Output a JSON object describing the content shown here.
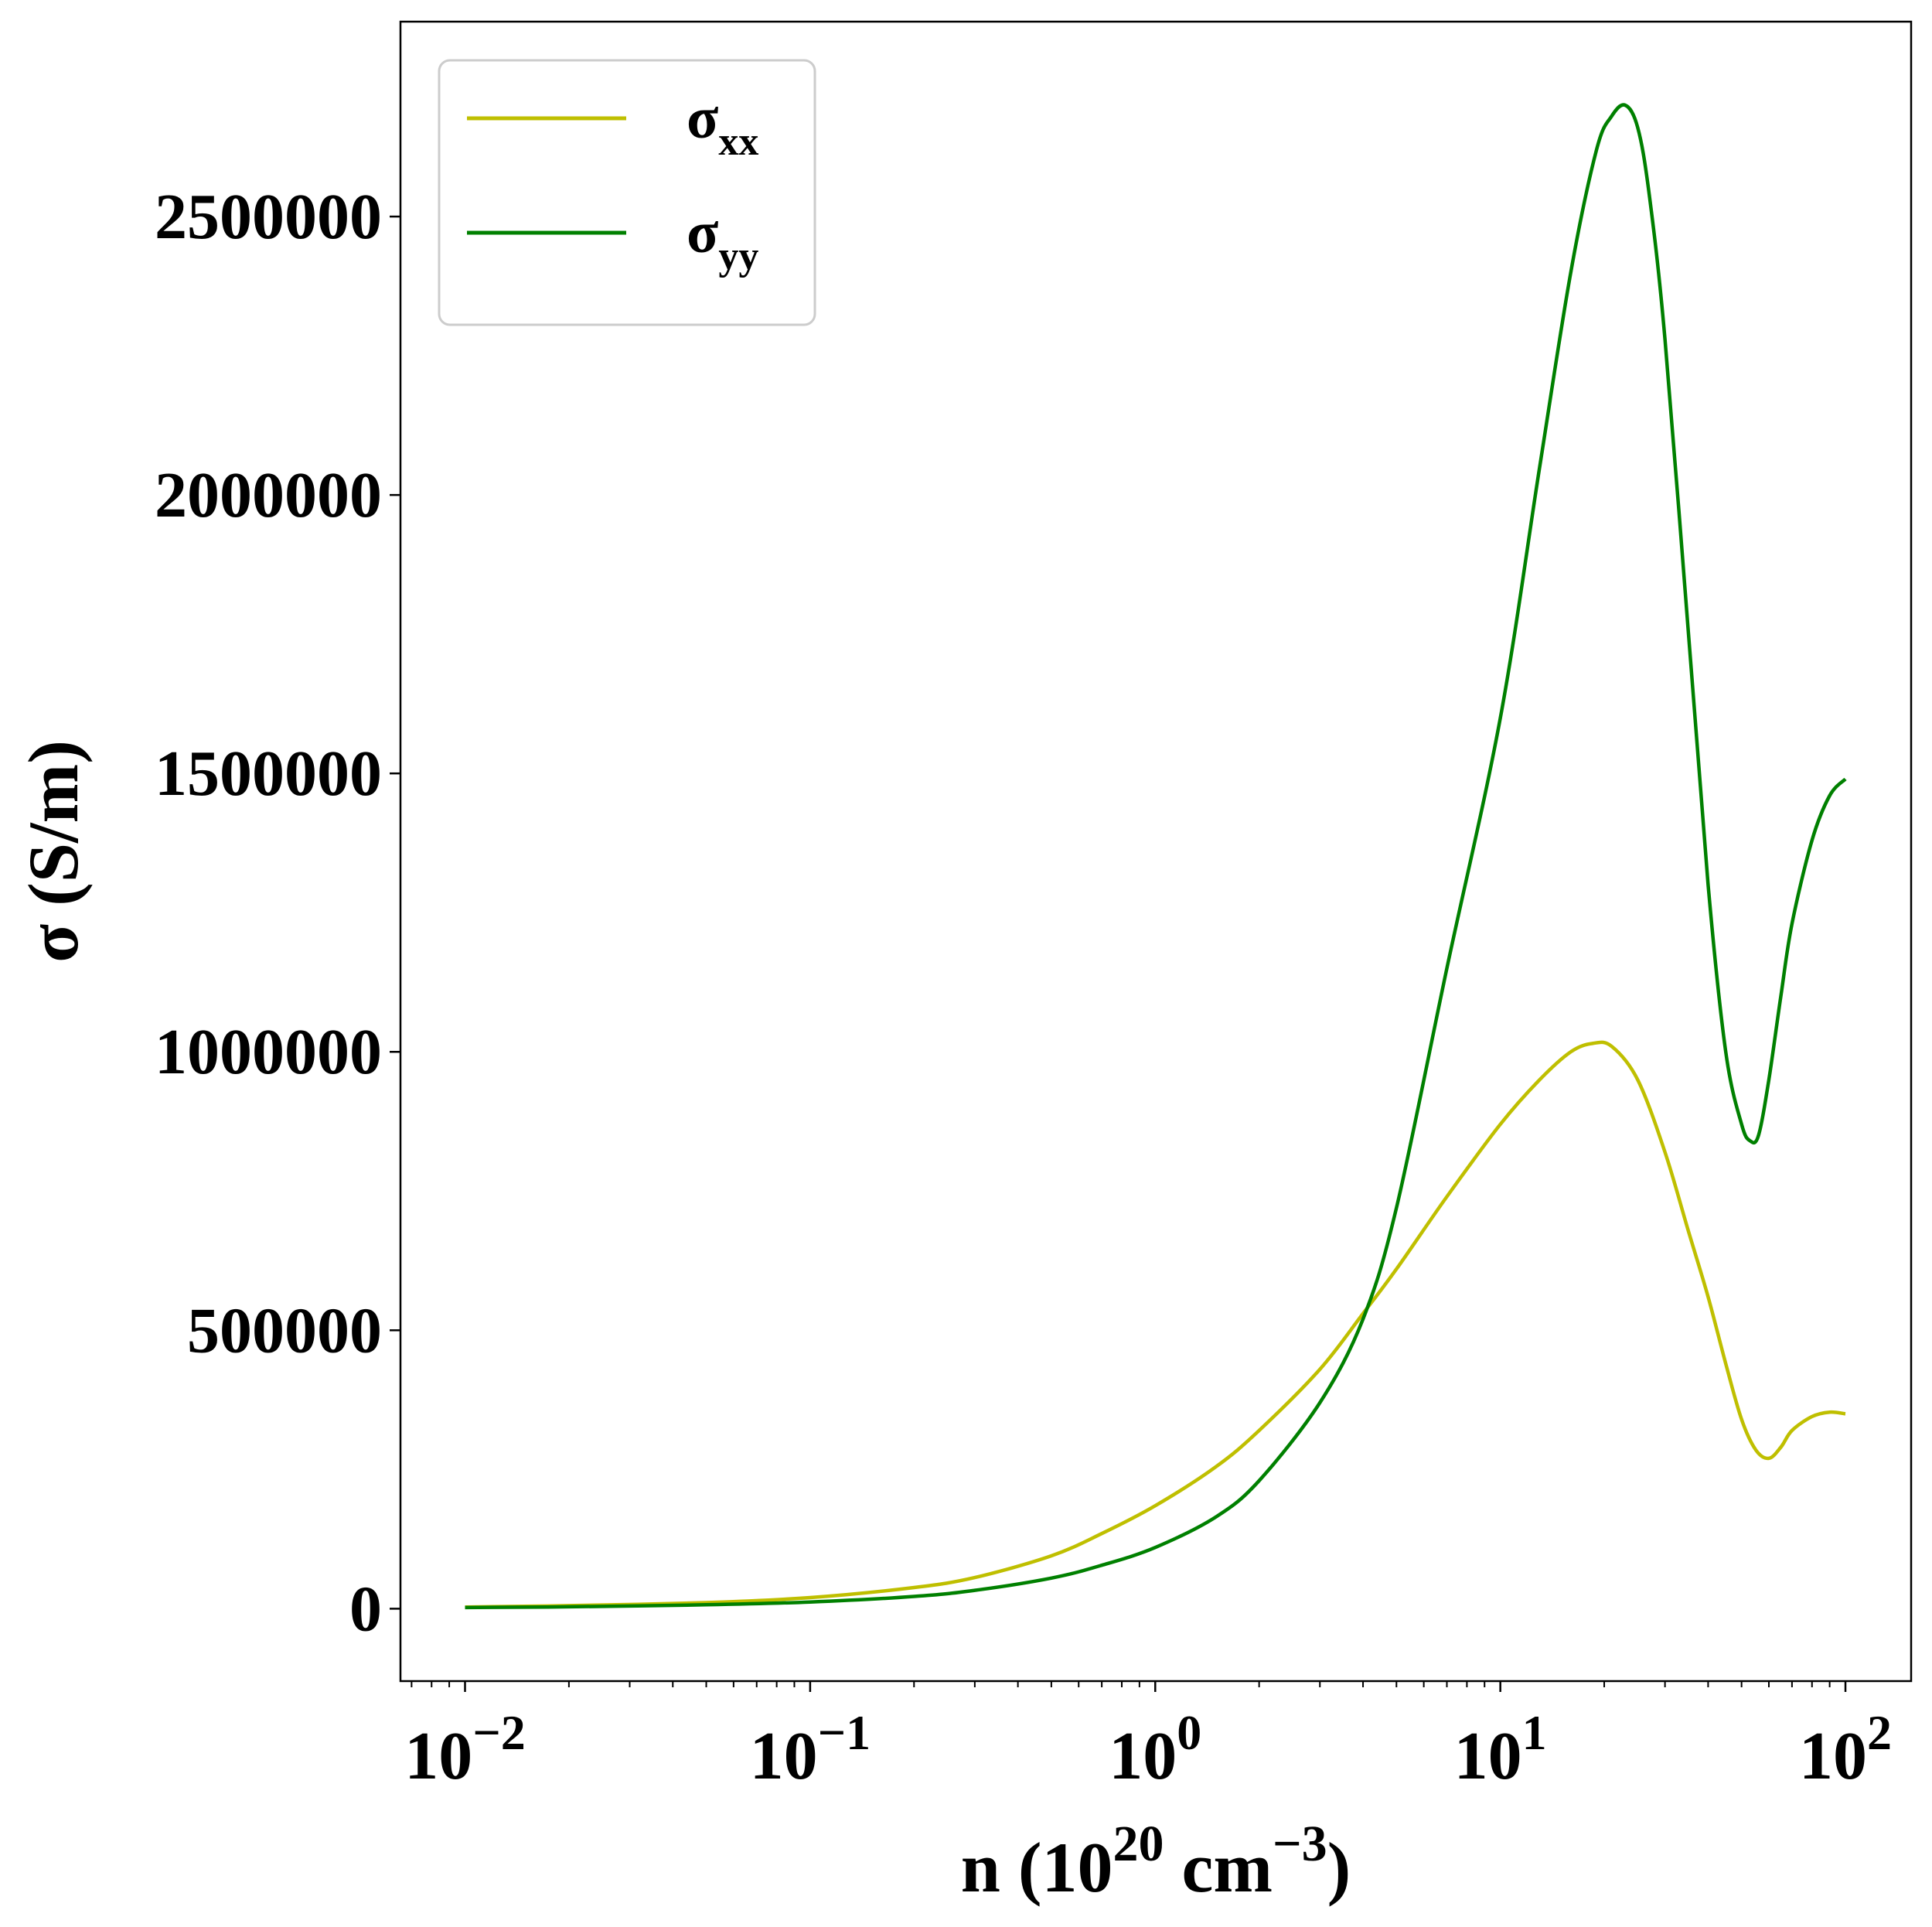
{
  "chart_data": {
    "type": "line",
    "xscale": "log",
    "xlabel": "n (10^20 cm^-3)",
    "xlabel_parts": {
      "main": "n (10",
      "exp1": "20",
      "mid": " cm",
      "exp2": "−3",
      "end": ")"
    },
    "ylabel": "σ (S/m)",
    "xlim": [
      0.0065,
      155
    ],
    "ylim": [
      -130000,
      2850000
    ],
    "xticks": [
      {
        "value": 0.01,
        "base": "10",
        "exp": "−2"
      },
      {
        "value": 0.1,
        "base": "10",
        "exp": "−1"
      },
      {
        "value": 1,
        "base": "10",
        "exp": "0"
      },
      {
        "value": 10,
        "base": "10",
        "exp": "1"
      },
      {
        "value": 100,
        "base": "10",
        "exp": "2"
      }
    ],
    "yticks": [
      {
        "value": 0,
        "label": "0"
      },
      {
        "value": 500000,
        "label": "500000"
      },
      {
        "value": 1000000,
        "label": "1000000"
      },
      {
        "value": 1500000,
        "label": "1500000"
      },
      {
        "value": 2000000,
        "label": "2000000"
      },
      {
        "value": 2500000,
        "label": "2500000"
      }
    ],
    "grid": false,
    "legend_position": "top-left",
    "series": [
      {
        "name": "σxx",
        "name_base": "σ",
        "name_sub": "xx",
        "color": "#bfbf00",
        "x": [
          0.01,
          0.02,
          0.05,
          0.1,
          0.2,
          0.3,
          0.5,
          0.7,
          1.0,
          1.5,
          2.0,
          3.0,
          4.0,
          5.0,
          7.0,
          10.0,
          13.0,
          16.0,
          18.5,
          21.0,
          25.0,
          30.0,
          35.0,
          40.0,
          45.0,
          50.0,
          55.0,
          60.0,
          65.0,
          70.0,
          80.0,
          90.0,
          100.0
        ],
        "y": [
          3000,
          5500,
          11000,
          20000,
          38000,
          56000,
          95000,
          135000,
          185000,
          255000,
          320000,
          430000,
          530000,
          610000,
          740000,
          870000,
          950000,
          1000000,
          1015000,
          1010000,
          950000,
          820000,
          680000,
          560000,
          440000,
          340000,
          285000,
          270000,
          290000,
          320000,
          345000,
          353000,
          350000
        ]
      },
      {
        "name": "σyy",
        "name_base": "σ",
        "name_sub": "yy",
        "color": "#008000",
        "x": [
          0.01,
          0.02,
          0.05,
          0.1,
          0.2,
          0.3,
          0.5,
          0.7,
          1.0,
          1.5,
          2.0,
          3.0,
          4.0,
          5.0,
          7.0,
          10.0,
          13.0,
          16.0,
          19.0,
          21.0,
          23.0,
          25.0,
          27.0,
          30.0,
          35.0,
          40.0,
          45.0,
          50.0,
          53.0,
          56.0,
          60.0,
          65.0,
          70.0,
          80.0,
          90.0,
          100.0
        ],
        "y": [
          2000,
          3500,
          7000,
          12000,
          22000,
          33000,
          55000,
          78000,
          110000,
          165000,
          230000,
          370000,
          520000,
          720000,
          1150000,
          1600000,
          2050000,
          2400000,
          2620000,
          2680000,
          2700000,
          2660000,
          2540000,
          2280000,
          1760000,
          1300000,
          1000000,
          870000,
          840000,
          850000,
          950000,
          1100000,
          1230000,
          1380000,
          1460000,
          1490000
        ]
      }
    ]
  }
}
